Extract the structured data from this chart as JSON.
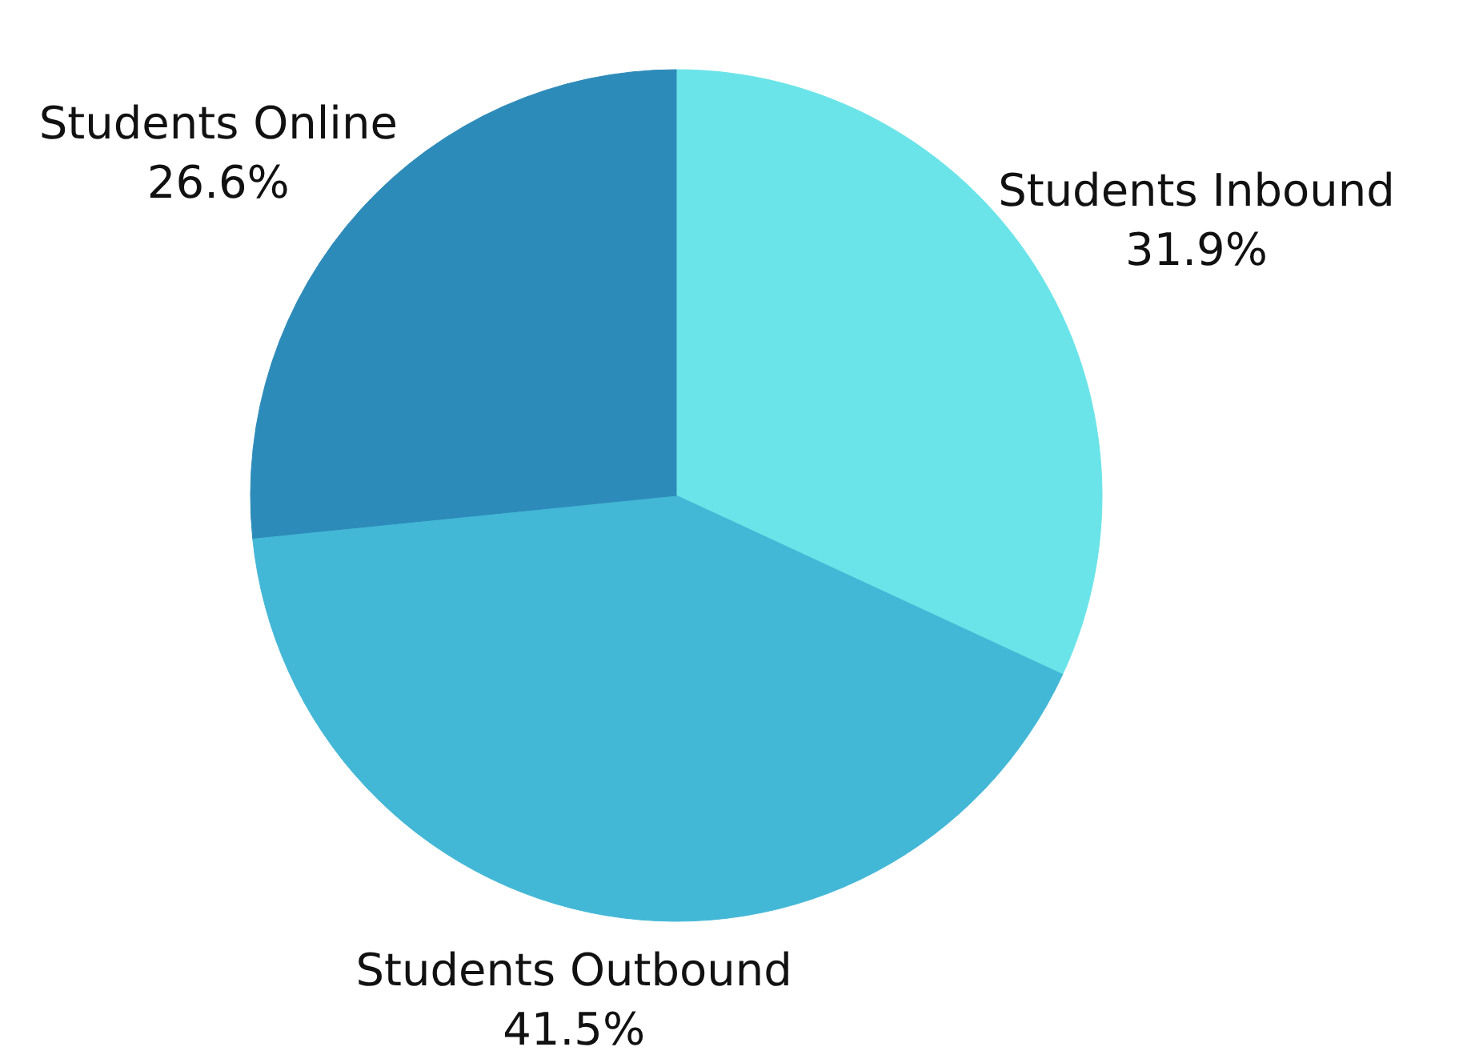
{
  "chart_data": {
    "type": "pie",
    "categories": [
      "Students Inbound",
      "Students Outbound",
      "Students Online"
    ],
    "values": [
      31.9,
      41.5,
      26.6
    ],
    "colors": [
      "#6ae4e8",
      "#43b7d6",
      "#2d8bb9"
    ],
    "value_labels": [
      "31.9%",
      "41.5%",
      "26.6%"
    ],
    "legend": false
  }
}
